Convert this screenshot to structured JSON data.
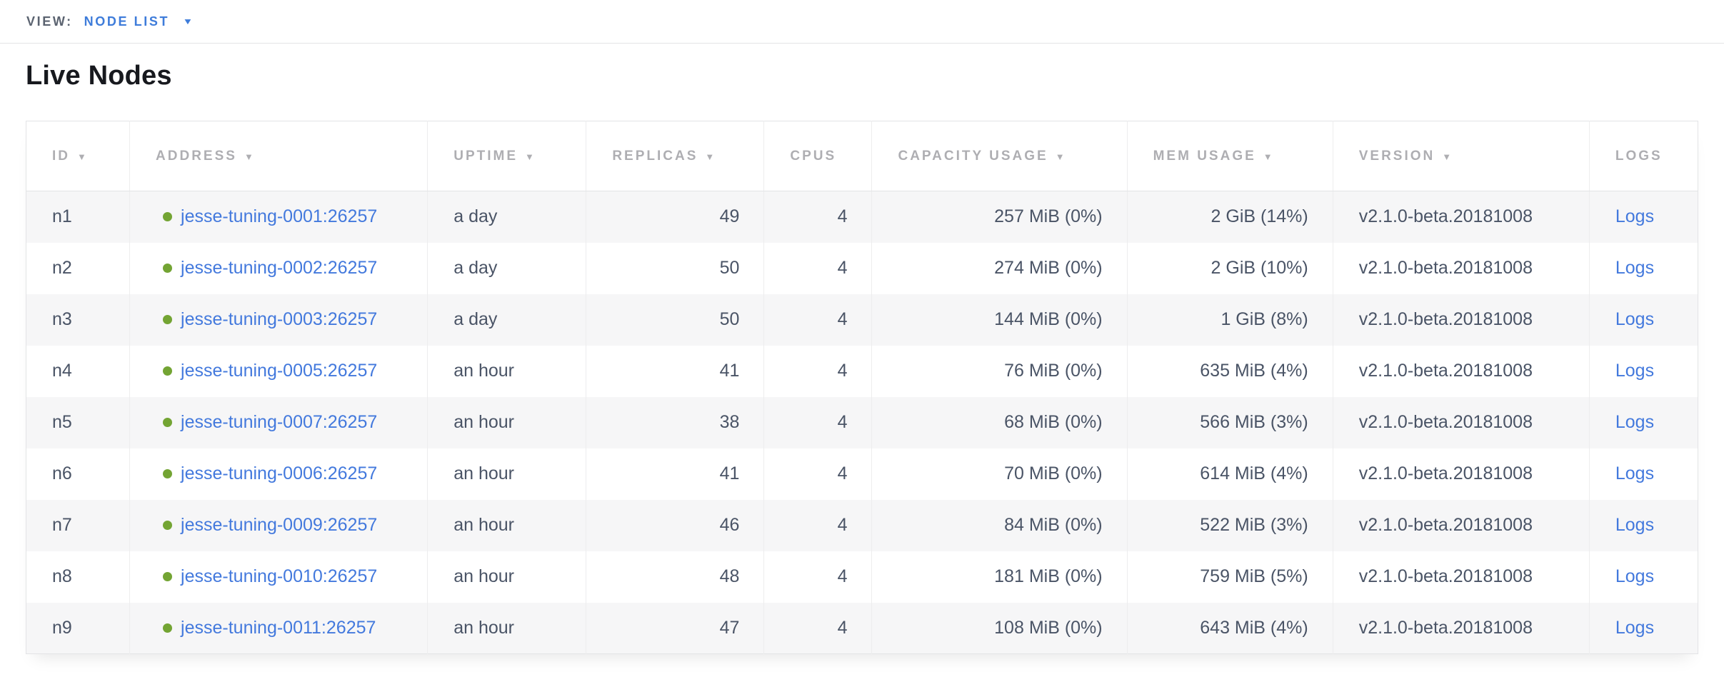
{
  "view_bar": {
    "label": "VIEW:",
    "selected_view": "NODE LIST"
  },
  "page": {
    "title": "Live Nodes"
  },
  "icons": {
    "sort_arrow": "▼",
    "dropdown_caret": "▼"
  },
  "colors": {
    "accent_blue": "#3e7cda",
    "link_blue": "#4379dd",
    "healthy_green": "#73a433",
    "header_gray": "#aeaeb2",
    "text_dark": "#4a5466",
    "view_label_gray": "#5b6370",
    "border_light": "#e3e4e6"
  },
  "table": {
    "columns": [
      {
        "label": "ID",
        "sortable": true
      },
      {
        "label": "ADDRESS",
        "sortable": true
      },
      {
        "label": "UPTIME",
        "sortable": true
      },
      {
        "label": "REPLICAS",
        "sortable": true
      },
      {
        "label": "CPUS",
        "sortable": false
      },
      {
        "label": "CAPACITY USAGE",
        "sortable": true
      },
      {
        "label": "MEM USAGE",
        "sortable": true
      },
      {
        "label": "VERSION",
        "sortable": true
      },
      {
        "label": "LOGS",
        "sortable": false
      }
    ],
    "rows": [
      {
        "id": "n1",
        "status": "healthy",
        "address": "jesse-tuning-0001:26257",
        "uptime": "a day",
        "replicas": "49",
        "cpus": "4",
        "capacity_usage": "257 MiB (0%)",
        "mem_usage": "2 GiB (14%)",
        "version": "v2.1.0-beta.20181008",
        "logs": "Logs"
      },
      {
        "id": "n2",
        "status": "healthy",
        "address": "jesse-tuning-0002:26257",
        "uptime": "a day",
        "replicas": "50",
        "cpus": "4",
        "capacity_usage": "274 MiB (0%)",
        "mem_usage": "2 GiB (10%)",
        "version": "v2.1.0-beta.20181008",
        "logs": "Logs"
      },
      {
        "id": "n3",
        "status": "healthy",
        "address": "jesse-tuning-0003:26257",
        "uptime": "a day",
        "replicas": "50",
        "cpus": "4",
        "capacity_usage": "144 MiB (0%)",
        "mem_usage": "1 GiB (8%)",
        "version": "v2.1.0-beta.20181008",
        "logs": "Logs"
      },
      {
        "id": "n4",
        "status": "healthy",
        "address": "jesse-tuning-0005:26257",
        "uptime": "an hour",
        "replicas": "41",
        "cpus": "4",
        "capacity_usage": "76 MiB (0%)",
        "mem_usage": "635 MiB (4%)",
        "version": "v2.1.0-beta.20181008",
        "logs": "Logs"
      },
      {
        "id": "n5",
        "status": "healthy",
        "address": "jesse-tuning-0007:26257",
        "uptime": "an hour",
        "replicas": "38",
        "cpus": "4",
        "capacity_usage": "68 MiB (0%)",
        "mem_usage": "566 MiB (3%)",
        "version": "v2.1.0-beta.20181008",
        "logs": "Logs"
      },
      {
        "id": "n6",
        "status": "healthy",
        "address": "jesse-tuning-0006:26257",
        "uptime": "an hour",
        "replicas": "41",
        "cpus": "4",
        "capacity_usage": "70 MiB (0%)",
        "mem_usage": "614 MiB (4%)",
        "version": "v2.1.0-beta.20181008",
        "logs": "Logs"
      },
      {
        "id": "n7",
        "status": "healthy",
        "address": "jesse-tuning-0009:26257",
        "uptime": "an hour",
        "replicas": "46",
        "cpus": "4",
        "capacity_usage": "84 MiB (0%)",
        "mem_usage": "522 MiB (3%)",
        "version": "v2.1.0-beta.20181008",
        "logs": "Logs"
      },
      {
        "id": "n8",
        "status": "healthy",
        "address": "jesse-tuning-0010:26257",
        "uptime": "an hour",
        "replicas": "48",
        "cpus": "4",
        "capacity_usage": "181 MiB (0%)",
        "mem_usage": "759 MiB (5%)",
        "version": "v2.1.0-beta.20181008",
        "logs": "Logs"
      },
      {
        "id": "n9",
        "status": "healthy",
        "address": "jesse-tuning-0011:26257",
        "uptime": "an hour",
        "replicas": "47",
        "cpus": "4",
        "capacity_usage": "108 MiB (0%)",
        "mem_usage": "643 MiB (4%)",
        "version": "v2.1.0-beta.20181008",
        "logs": "Logs"
      }
    ]
  }
}
